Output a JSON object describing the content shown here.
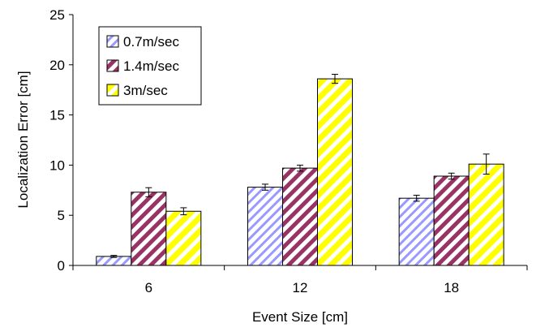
{
  "colors": {
    "series": [
      "#9999ff",
      "#993366",
      "#ffff00"
    ]
  },
  "chart_data": {
    "type": "bar",
    "categories": [
      "6",
      "12",
      "18"
    ],
    "series": [
      {
        "name": "0.7m/sec",
        "values": [
          0.9,
          7.8,
          6.7
        ],
        "errors": [
          0.1,
          0.3,
          0.3
        ]
      },
      {
        "name": "1.4m/sec",
        "values": [
          7.3,
          9.7,
          8.9
        ],
        "errors": [
          0.45,
          0.3,
          0.3
        ]
      },
      {
        "name": "3m/sec",
        "values": [
          5.4,
          18.6,
          10.1
        ],
        "errors": [
          0.35,
          0.45,
          1.0
        ]
      }
    ],
    "xlabel": "Event Size [cm]",
    "ylabel": "Localization Error [cm]",
    "ylim": [
      0,
      25
    ],
    "yticks": [
      0,
      5,
      10,
      15,
      20,
      25
    ],
    "grid": false,
    "legend": "top-left"
  }
}
